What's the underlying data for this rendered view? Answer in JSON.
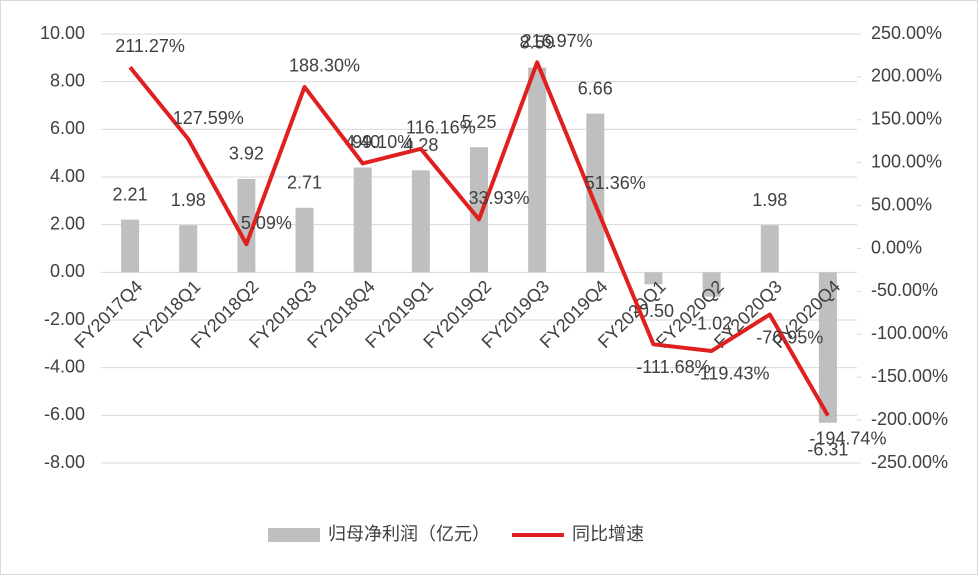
{
  "chart_data": {
    "type": "bar-line",
    "categories": [
      "FY2017Q4",
      "FY2018Q1",
      "FY2018Q2",
      "FY2018Q3",
      "FY2018Q4",
      "FY2019Q1",
      "FY2019Q2",
      "FY2019Q3",
      "FY2019Q4",
      "FY2020Q1",
      "FY2020Q2",
      "FY2020Q3",
      "FY2020Q4"
    ],
    "series": [
      {
        "name": "归母净利润（亿元）",
        "type": "bar",
        "color": "#bfbfbf",
        "values": [
          2.21,
          1.98,
          3.92,
          2.71,
          4.4,
          4.28,
          5.25,
          8.59,
          6.66,
          -0.5,
          -1.02,
          1.98,
          -6.31
        ],
        "value_labels": [
          "2.21",
          "1.98",
          "3.92",
          "2.71",
          "4.40",
          "4.28",
          "5.25",
          "8.59",
          "6.66",
          "-0.50",
          "-1.02",
          "1.98",
          "-6.31"
        ]
      },
      {
        "name": "同比增速",
        "type": "line",
        "color": "#e02020",
        "axis": "y2",
        "values": [
          211.27,
          127.59,
          5.09,
          188.3,
          99.1,
          116.16,
          33.93,
          216.97,
          51.36,
          -111.68,
          -119.43,
          -76.95,
          -194.74
        ],
        "value_labels": [
          "211.27%",
          "127.59%",
          "5.09%",
          "188.30%",
          "99.10%",
          "116.16%",
          "33.93%",
          "216.97%",
          "51.36%",
          "-111.68%",
          "-119.43%",
          "-76.95%",
          "-194.74%"
        ]
      }
    ],
    "ylim": [
      -8,
      10
    ],
    "yticks": [
      {
        "value": -8,
        "label": "-8.00"
      },
      {
        "value": -6,
        "label": "-6.00"
      },
      {
        "value": -4,
        "label": "-4.00"
      },
      {
        "value": -2,
        "label": "-2.00"
      },
      {
        "value": 0,
        "label": "0.00"
      },
      {
        "value": 2,
        "label": "2.00"
      },
      {
        "value": 4,
        "label": "4.00"
      },
      {
        "value": 6,
        "label": "6.00"
      },
      {
        "value": 8,
        "label": "8.00"
      },
      {
        "value": 10,
        "label": "10.00"
      }
    ],
    "y2lim": [
      -250,
      250
    ],
    "y2ticks": [
      {
        "value": -250,
        "label": "-250.00%"
      },
      {
        "value": -200,
        "label": "-200.00%"
      },
      {
        "value": -150,
        "label": "-150.00%"
      },
      {
        "value": -100,
        "label": "-100.00%"
      },
      {
        "value": -50,
        "label": "-50.00%"
      },
      {
        "value": 0,
        "label": "0.00%"
      },
      {
        "value": 50,
        "label": "50.00%"
      },
      {
        "value": 100,
        "label": "100.00%"
      },
      {
        "value": 150,
        "label": "150.00%"
      },
      {
        "value": 200,
        "label": "200.00%"
      },
      {
        "value": 250,
        "label": "250.00%"
      }
    ],
    "legend": "bottom"
  }
}
